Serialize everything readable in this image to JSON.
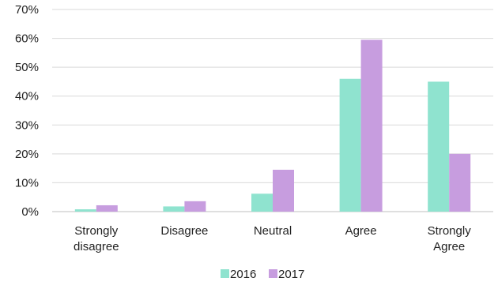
{
  "chart_data": {
    "type": "bar",
    "title": "",
    "xlabel": "",
    "ylabel": "",
    "categories": [
      [
        "Strongly",
        "disagree"
      ],
      [
        "Disagree"
      ],
      [
        "Neutral"
      ],
      [
        "Agree"
      ],
      [
        "Strongly",
        "Agree"
      ]
    ],
    "series": [
      {
        "name": "2016",
        "color": "#8fe3cf",
        "values": [
          0.8,
          1.8,
          6.2,
          46,
          45
        ]
      },
      {
        "name": "2017",
        "color": "#c79ddf",
        "values": [
          2.2,
          3.6,
          14.5,
          59.5,
          20
        ]
      }
    ],
    "ylim": [
      0,
      70
    ],
    "yticks": [
      "0%",
      "10%",
      "20%",
      "30%",
      "40%",
      "50%",
      "60%",
      "70%"
    ],
    "grid": true,
    "legend_position": "bottom"
  }
}
